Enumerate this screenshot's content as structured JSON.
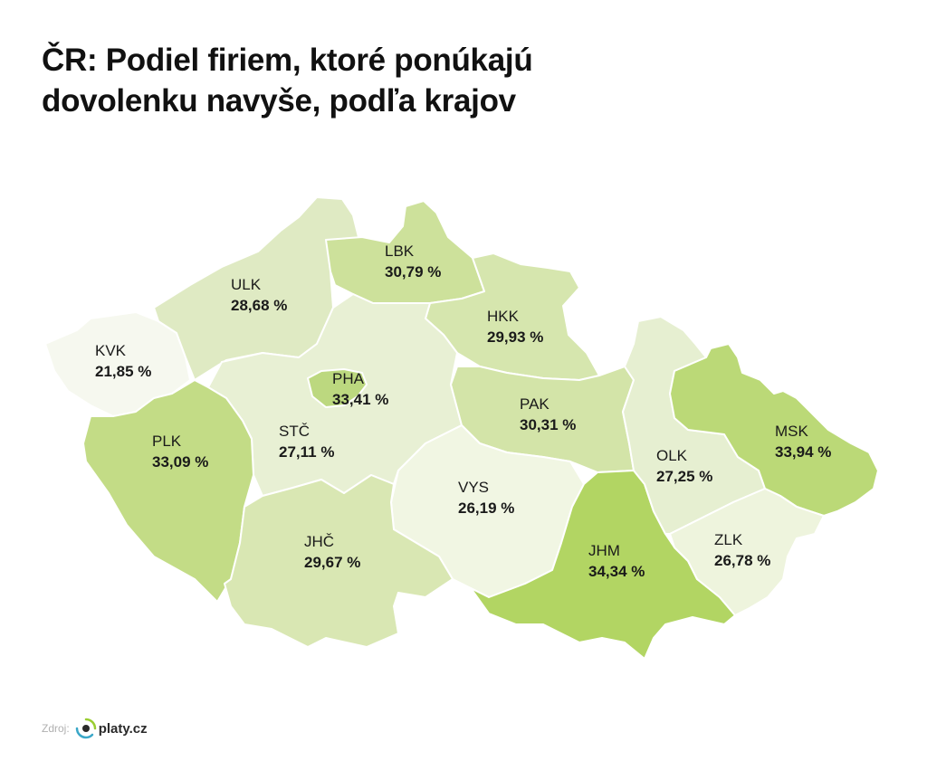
{
  "title_lines": [
    "ČR: Podiel firiem, ktoré ponúkajú",
    "dovolenku navyše, podľa krajov"
  ],
  "regions": [
    {
      "id": "KVK",
      "code": "KVK",
      "value": "21,85 %",
      "v": 21.85,
      "color": "#f6f8ef"
    },
    {
      "id": "ULK",
      "code": "ULK",
      "value": "28,68 %",
      "v": 28.68,
      "color": "#dfeac3"
    },
    {
      "id": "LBK",
      "code": "LBK",
      "value": "30,79 %",
      "v": 30.79,
      "color": "#cde19b"
    },
    {
      "id": "HKK",
      "code": "HKK",
      "value": "29,93 %",
      "v": 29.93,
      "color": "#d6e6ae"
    },
    {
      "id": "PHA",
      "code": "PHA",
      "value": "33,41 %",
      "v": 33.41,
      "color": "#bcd87f"
    },
    {
      "id": "STC",
      "code": "STČ",
      "value": "27,11 %",
      "v": 27.11,
      "color": "#e8f0d4"
    },
    {
      "id": "PAK",
      "code": "PAK",
      "value": "30,31 %",
      "v": 30.31,
      "color": "#d3e4a8"
    },
    {
      "id": "PLK",
      "code": "PLK",
      "value": "33,09 %",
      "v": 33.09,
      "color": "#c3dc86"
    },
    {
      "id": "VYS",
      "code": "VYS",
      "value": "26,19 %",
      "v": 26.19,
      "color": "#f1f6e3"
    },
    {
      "id": "JHC",
      "code": "JHČ",
      "value": "29,67 %",
      "v": 29.67,
      "color": "#d9e7b3"
    },
    {
      "id": "JHM",
      "code": "JHM",
      "value": "34,34 %",
      "v": 34.34,
      "color": "#b2d563"
    },
    {
      "id": "OLK",
      "code": "OLK",
      "value": "27,25 %",
      "v": 27.25,
      "color": "#e6efd1"
    },
    {
      "id": "MSK",
      "code": "MSK",
      "value": "33,94 %",
      "v": 33.94,
      "color": "#bbd977"
    },
    {
      "id": "ZLK",
      "code": "ZLK",
      "value": "26,78 %",
      "v": 26.78,
      "color": "#eef4dd"
    }
  ],
  "source": {
    "label": "Zdroj:",
    "brand": "platy.cz",
    "icon": "platy-logo-icon",
    "icon_colors": [
      "#2a2a2a",
      "#9acd32",
      "#3aa7c8"
    ]
  }
}
